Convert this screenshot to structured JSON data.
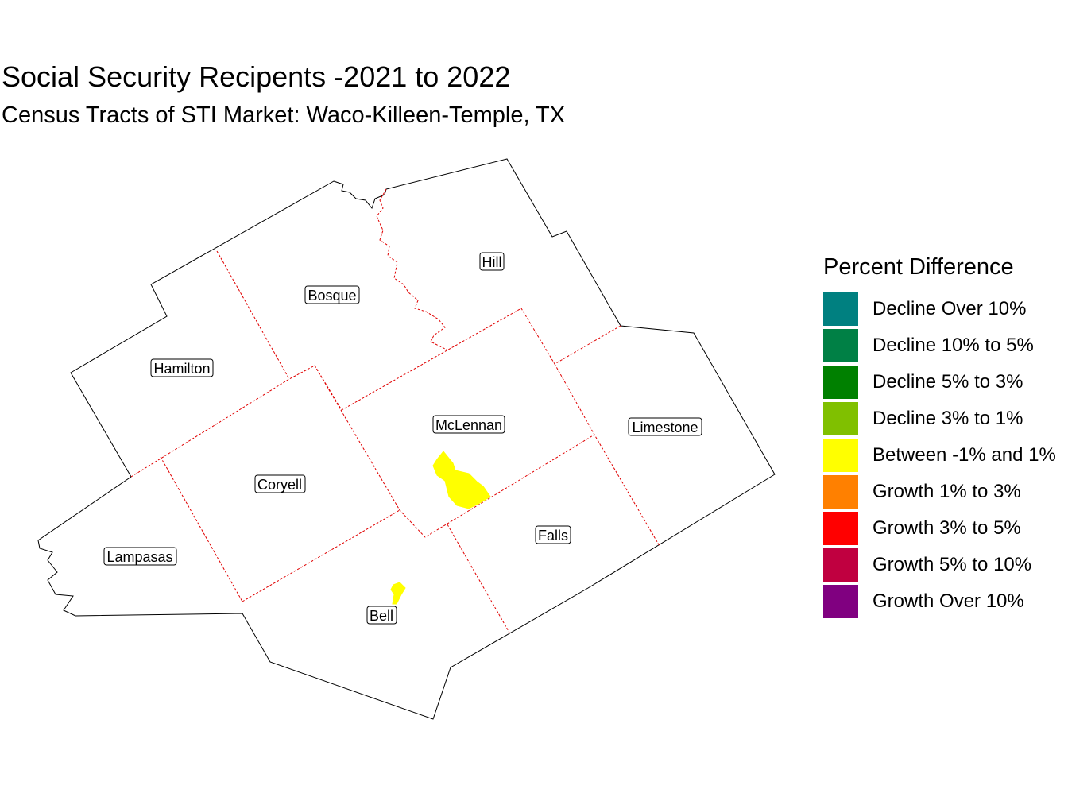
{
  "title": "Social Security Recipents -2021 to 2022",
  "subtitle": "Census Tracts of STI Market: Waco-Killeen-Temple, TX",
  "map": {
    "counties": [
      "Hill",
      "Bosque",
      "Hamilton",
      "McLennan",
      "Limestone",
      "Coryell",
      "Falls",
      "Lampasas",
      "Bell"
    ],
    "highlighted_tracts": [
      {
        "county": "McLennan",
        "category": "Between -1% and 1%"
      },
      {
        "county": "Bell",
        "category": "Between -1% and 1%"
      }
    ]
  },
  "legend": {
    "title": "Percent Difference",
    "items": [
      {
        "label": "Decline Over 10%",
        "color": "#008080"
      },
      {
        "label": "Decline 10% to 5%",
        "color": "#008045"
      },
      {
        "label": "Decline 5% to 3%",
        "color": "#008000"
      },
      {
        "label": "Decline 3% to 1%",
        "color": "#80C000"
      },
      {
        "label": "Between -1% and 1%",
        "color": "#FFFF00"
      },
      {
        "label": "Growth 1% to 3%",
        "color": "#FF8000"
      },
      {
        "label": "Growth 3% to 5%",
        "color": "#FF0000"
      },
      {
        "label": "Growth 5% to 10%",
        "color": "#C00040"
      },
      {
        "label": "Growth Over 10%",
        "color": "#800080"
      }
    ]
  }
}
